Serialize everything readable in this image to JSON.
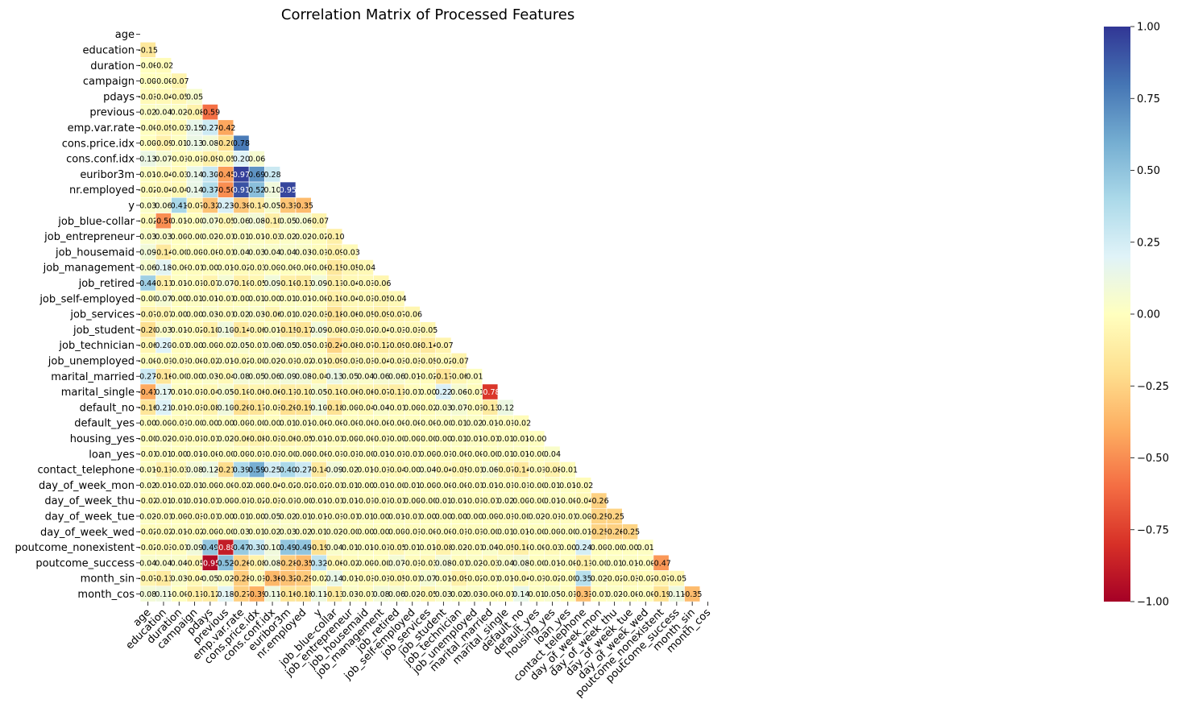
{
  "chart_data": {
    "type": "heatmap",
    "title": "Correlation Matrix of Processed Features",
    "xlabel": "",
    "ylabel": "",
    "colormap": "RdYlBu",
    "colormap_stops": [
      "#a50026",
      "#d73027",
      "#f46d43",
      "#fdae61",
      "#fee090",
      "#ffffbf",
      "#e0f3f8",
      "#abd9e9",
      "#74add1",
      "#4575b4",
      "#313695"
    ],
    "vmin": -1.0,
    "vmax": 1.0,
    "colorbar_ticks": [
      "1.00",
      "0.75",
      "0.50",
      "0.25",
      "0.00",
      "−0.25",
      "−0.50",
      "−0.75",
      "−1.00"
    ],
    "colorbar_tick_values": [
      1.0,
      0.75,
      0.5,
      0.25,
      0.0,
      -0.25,
      -0.5,
      -0.75,
      -1.0
    ],
    "mask": "upper-triangle",
    "labels": [
      "age",
      "education",
      "duration",
      "campaign",
      "pdays",
      "previous",
      "emp.var.rate",
      "cons.price.idx",
      "cons.conf.idx",
      "euribor3m",
      "nr.employed",
      "y",
      "job_blue-collar",
      "job_entrepreneur",
      "job_housemaid",
      "job_management",
      "job_retired",
      "job_self-employed",
      "job_services",
      "job_student",
      "job_technician",
      "job_unemployed",
      "marital_married",
      "marital_single",
      "default_no",
      "default_yes",
      "housing_yes",
      "loan_yes",
      "contact_telephone",
      "day_of_week_mon",
      "day_of_week_thu",
      "day_of_week_tue",
      "day_of_week_wed",
      "poutcome_nonexistent",
      "poutcome_success",
      "month_sin",
      "month_cos"
    ],
    "rows": [
      [],
      [
        -0.15
      ],
      [
        -0.0,
        -0.02
      ],
      [
        0.0,
        -0.0,
        -0.07
      ],
      [
        -0.03,
        -0.04,
        -0.05,
        0.05
      ],
      [
        0.02,
        0.04,
        0.02,
        -0.08,
        -0.59
      ],
      [
        -0.0,
        -0.05,
        -0.03,
        0.15,
        0.27,
        -0.42
      ],
      [
        0.0,
        -0.09,
        0.01,
        0.13,
        0.08,
        -0.2,
        0.78
      ],
      [
        0.13,
        0.07,
        -0.01,
        -0.01,
        -0.09,
        -0.05,
        0.2,
        0.06
      ],
      [
        0.01,
        -0.04,
        -0.03,
        0.14,
        0.3,
        -0.45,
        0.97,
        0.69,
        0.28
      ],
      [
        -0.02,
        -0.04,
        -0.04,
        0.14,
        0.37,
        -0.5,
        0.91,
        0.52,
        0.1,
        0.95
      ],
      [
        0.03,
        0.06,
        0.41,
        -0.07,
        -0.32,
        0.23,
        -0.3,
        -0.14,
        0.05,
        -0.31,
        -0.35
      ],
      [
        -0.02,
        -0.5,
        0.01,
        -0.0,
        0.07,
        -0.05,
        0.06,
        0.08,
        -0.1,
        0.05,
        0.06,
        -0.07
      ],
      [
        0.03,
        0.03,
        0.0,
        -0.0,
        0.02,
        -0.01,
        0.01,
        0.01,
        -0.03,
        0.02,
        0.02,
        -0.02,
        -0.1
      ],
      [
        0.09,
        -0.14,
        -0.0,
        0.0,
        -0.0,
        -0.01,
        0.04,
        0.03,
        0.04,
        0.04,
        0.03,
        -0.01,
        -0.09,
        -0.03
      ],
      [
        0.06,
        0.18,
        -0.0,
        -0.01,
        0.0,
        0.01,
        -0.02,
        -0.03,
        0.0,
        -0.0,
        -0.0,
        -0.0,
        -0.15,
        -0.05,
        -0.04
      ],
      [
        0.44,
        -0.11,
        0.01,
        -0.01,
        -0.07,
        0.07,
        -0.1,
        -0.05,
        0.09,
        -0.1,
        -0.13,
        0.09,
        -0.11,
        -0.04,
        -0.03,
        -0.06
      ],
      [
        -0.0,
        0.07,
        0.0,
        0.01,
        0.01,
        -0.01,
        0.0,
        0.01,
        0.0,
        0.01,
        0.01,
        -0.0,
        -0.1,
        -0.04,
        -0.03,
        -0.05,
        -0.04
      ],
      [
        -0.07,
        -0.07,
        0.0,
        0.0,
        0.03,
        -0.01,
        0.02,
        0.03,
        -0.06,
        0.01,
        0.02,
        -0.03,
        -0.18,
        -0.06,
        -0.05,
        -0.09,
        -0.07,
        -0.06
      ],
      [
        -0.2,
        0.03,
        0.01,
        -0.02,
        -0.1,
        0.1,
        -0.14,
        -0.06,
        0.01,
        -0.15,
        -0.17,
        0.09,
        -0.08,
        -0.03,
        -0.02,
        -0.04,
        -0.03,
        -0.03,
        -0.05
      ],
      [
        -0.06,
        0.2,
        -0.01,
        0.0,
        0.0,
        -0.02,
        0.05,
        -0.01,
        0.06,
        0.05,
        0.05,
        -0.01,
        -0.24,
        -0.08,
        -0.07,
        -0.12,
        -0.09,
        -0.08,
        -0.14,
        -0.07
      ],
      [
        -0.0,
        -0.01,
        -0.01,
        -0.0,
        -0.02,
        0.01,
        -0.02,
        -0.0,
        0.02,
        -0.01,
        -0.02,
        0.01,
        -0.09,
        -0.03,
        -0.03,
        -0.04,
        -0.03,
        -0.03,
        -0.05,
        -0.02,
        -0.07
      ],
      [
        0.27,
        -0.16,
        -0.0,
        0.0,
        0.03,
        -0.04,
        0.08,
        0.05,
        0.06,
        0.09,
        0.08,
        -0.04,
        0.13,
        0.05,
        0.04,
        0.06,
        0.06,
        0.01,
        -0.02,
        -0.17,
        -0.06,
        0.01
      ],
      [
        -0.41,
        0.17,
        0.01,
        -0.01,
        -0.04,
        0.05,
        -0.1,
        -0.06,
        -0.06,
        -0.11,
        -0.1,
        0.05,
        -0.1,
        -0.06,
        -0.06,
        -0.07,
        -0.11,
        -0.01,
        0.0,
        0.22,
        0.06,
        -0.01,
        -0.78
      ],
      [
        -0.16,
        0.21,
        0.01,
        -0.03,
        -0.08,
        0.1,
        -0.2,
        -0.17,
        -0.03,
        -0.2,
        -0.19,
        0.1,
        -0.18,
        0.0,
        -0.04,
        0.04,
        -0.01,
        0.0,
        -0.02,
        0.03,
        0.07,
        -0.01,
        -0.13,
        0.12
      ],
      [
        0.0,
        0.0,
        -0.01,
        -0.0,
        0.0,
        0.0,
        0.0,
        -0.0,
        0.0,
        0.01,
        0.01,
        -0.0,
        -0.0,
        -0.0,
        -0.0,
        -0.0,
        -0.0,
        -0.0,
        -0.0,
        -0.0,
        0.01,
        0.02,
        0.01,
        -0.01,
        -0.02
      ],
      [
        -0.0,
        0.02,
        -0.01,
        -0.01,
        -0.01,
        0.02,
        -0.06,
        -0.08,
        -0.03,
        -0.06,
        -0.05,
        0.01,
        -0.01,
        0.0,
        -0.0,
        -0.01,
        -0.0,
        0.0,
        -0.0,
        0.0,
        0.01,
        0.01,
        -0.01,
        0.01,
        0.01,
        -0.0
      ],
      [
        -0.01,
        0.01,
        0.0,
        0.01,
        -0.0,
        -0.0,
        0.0,
        -0.01,
        -0.01,
        -0.0,
        0.0,
        -0.0,
        -0.01,
        -0.01,
        -0.0,
        0.01,
        -0.01,
        -0.01,
        0.0,
        -0.01,
        -0.0,
        -0.0,
        -0.0,
        0.01,
        0.01,
        -0.0,
        0.04
      ],
      [
        0.01,
        -0.11,
        -0.03,
        0.08,
        0.12,
        -0.21,
        0.39,
        0.59,
        0.25,
        0.4,
        0.27,
        -0.14,
        0.09,
        0.02,
        0.01,
        -0.01,
        -0.04,
        0.0,
        0.04,
        -0.04,
        -0.05,
        -0.01,
        0.06,
        -0.07,
        -0.14,
        -0.01,
        -0.08,
        -0.01
      ],
      [
        0.02,
        0.01,
        -0.02,
        0.01,
        0.0,
        -0.0,
        -0.02,
        0.0,
        -0.04,
        -0.02,
        -0.02,
        -0.02,
        -0.01,
        0.01,
        0.0,
        0.01,
        -0.0,
        0.01,
        0.0,
        -0.0,
        -0.0,
        -0.01,
        0.01,
        -0.01,
        -0.01,
        -0.0,
        0.01,
        0.01,
        -0.02
      ],
      [
        -0.02,
        0.01,
        0.01,
        0.01,
        -0.01,
        0.0,
        -0.01,
        -0.02,
        -0.03,
        -0.01,
        -0.0,
        0.01,
        -0.01,
        0.01,
        -0.01,
        -0.01,
        -0.01,
        0.0,
        -0.0,
        0.01,
        0.01,
        -0.01,
        -0.01,
        0.02,
        0.0,
        -0.0,
        0.01,
        -0.0,
        -0.04,
        -0.26
      ],
      [
        0.02,
        -0.01,
        0.0,
        -0.03,
        -0.01,
        0.0,
        0.01,
        0.0,
        0.05,
        0.02,
        0.01,
        0.01,
        -0.01,
        -0.01,
        0.01,
        0.0,
        0.01,
        -0.01,
        0.0,
        0.0,
        0.0,
        0.0,
        0.0,
        -0.01,
        -0.0,
        0.02,
        -0.01,
        -0.01,
        0.0,
        -0.25,
        -0.25
      ],
      [
        -0.02,
        -0.02,
        0.01,
        -0.02,
        0.0,
        -0.0,
        0.03,
        0.01,
        0.02,
        0.03,
        0.02,
        0.01,
        0.02,
        -0.0,
        0.0,
        0.0,
        0.0,
        -0.01,
        -0.0,
        -0.0,
        -0.01,
        -0.01,
        -0.0,
        0.01,
        0.01,
        -0.0,
        0.0,
        -0.0,
        0.01,
        -0.25,
        -0.26,
        -0.25
      ],
      [
        -0.02,
        -0.03,
        -0.01,
        0.09,
        0.49,
        -0.88,
        0.47,
        0.3,
        0.1,
        0.49,
        0.49,
        -0.19,
        0.04,
        0.01,
        0.01,
        -0.01,
        -0.05,
        0.01,
        0.01,
        -0.08,
        0.02,
        -0.01,
        0.04,
        -0.05,
        -0.1,
        -0.0,
        -0.03,
        0.0,
        0.24,
        0.0,
        -0.0,
        0.0,
        0.01
      ],
      [
        0.04,
        0.04,
        0.04,
        -0.05,
        -0.95,
        0.52,
        -0.26,
        -0.08,
        0.08,
        -0.28,
        -0.35,
        0.32,
        -0.06,
        -0.02,
        0.0,
        -0.0,
        0.07,
        -0.01,
        -0.03,
        0.08,
        -0.01,
        0.02,
        -0.03,
        0.04,
        0.08,
        -0.0,
        0.01,
        -0.0,
        -0.11,
        -0.0,
        0.01,
        0.01,
        -0.0,
        -0.47
      ],
      [
        -0.07,
        -0.13,
        0.03,
        -0.04,
        0.05,
        0.02,
        -0.28,
        -0.01,
        -0.36,
        -0.32,
        -0.29,
        -0.02,
        0.14,
        0.01,
        -0.03,
        -0.01,
        -0.05,
        -0.01,
        0.07,
        0.01,
        -0.09,
        -0.02,
        -0.01,
        0.01,
        -0.04,
        -0.01,
        -0.02,
        -0.0,
        0.35,
        0.02,
        -0.02,
        -0.03,
        -0.02,
        -0.07,
        -0.05
      ],
      [
        0.08,
        0.11,
        -0.0,
        -0.11,
        -0.12,
        0.18,
        -0.27,
        -0.39,
        0.11,
        -0.16,
        -0.18,
        0.11,
        -0.13,
        0.03,
        -0.01,
        0.08,
        0.06,
        0.02,
        -0.05,
        0.03,
        0.02,
        0.03,
        -0.0,
        -0.01,
        0.14,
        0.01,
        0.05,
        -0.01,
        -0.33,
        -0.01,
        0.02,
        -0.0,
        -0.0,
        -0.19,
        0.11,
        -0.35
      ]
    ]
  }
}
